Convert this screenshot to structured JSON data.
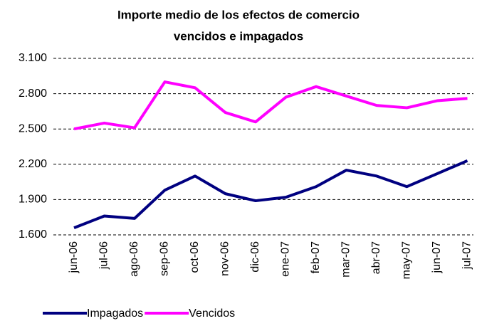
{
  "chart_data": {
    "type": "line",
    "title": [
      "Importe medio de los efectos de comercio",
      "vencidos e impagados"
    ],
    "categories": [
      "jun-06",
      "jul-06",
      "ago-06",
      "sep-06",
      "oct-06",
      "nov-06",
      "dic-06",
      "ene-07",
      "feb-07",
      "mar-07",
      "abr-07",
      "may-07",
      "jun-07",
      "jul-07"
    ],
    "series": [
      {
        "name": "Impagados",
        "color": "#000080",
        "values": [
          1660,
          1760,
          1740,
          1980,
          2100,
          1950,
          1890,
          1920,
          2010,
          2150,
          2100,
          2010,
          2120,
          2230
        ]
      },
      {
        "name": "Vencidos",
        "color": "#ff00ff",
        "values": [
          2500,
          2550,
          2510,
          2900,
          2850,
          2640,
          2560,
          2770,
          2860,
          2780,
          2700,
          2680,
          2740,
          2760
        ]
      }
    ],
    "ylim": [
      1600,
      3100
    ],
    "yticks": [
      {
        "value": 1600,
        "label": "1.600"
      },
      {
        "value": 1900,
        "label": "1.900"
      },
      {
        "value": 2200,
        "label": "2.200"
      },
      {
        "value": 2500,
        "label": "2.500"
      },
      {
        "value": 2800,
        "label": "2.800"
      },
      {
        "value": 3100,
        "label": "3.100"
      }
    ],
    "grid": true,
    "legend": "bottom-left"
  }
}
